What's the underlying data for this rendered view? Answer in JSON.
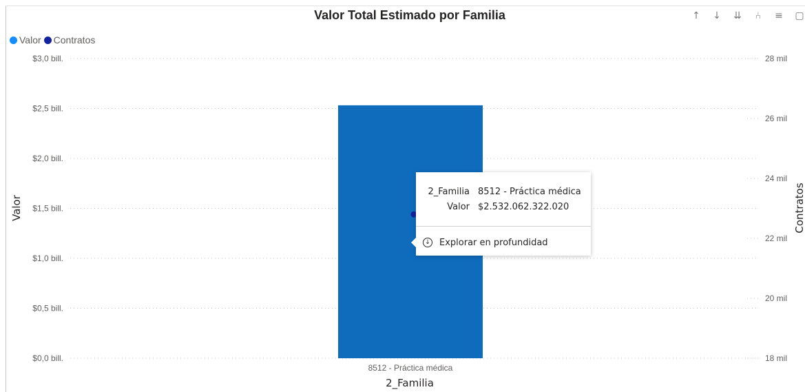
{
  "visual": {
    "title": "Valor Total Estimado por Familia",
    "toolbar": [
      {
        "name": "drill-up-icon",
        "glyph": "↑"
      },
      {
        "name": "drill-down-icon",
        "glyph": "↓"
      },
      {
        "name": "expand-next-level-icon",
        "glyph": "⇊"
      },
      {
        "name": "expand-hierarchy-icon",
        "glyph": "⑃"
      },
      {
        "name": "filter-icon",
        "glyph": "≡"
      },
      {
        "name": "focus-mode-icon",
        "glyph": "▢"
      }
    ]
  },
  "legend": [
    {
      "label": "Valor",
      "color": "#118DFF"
    },
    {
      "label": "Contratos",
      "color": "#12239E"
    }
  ],
  "chart_data": {
    "type": "bar",
    "title": "Valor Total Estimado por Familia",
    "xlabel": "2_Familia",
    "ylabel": "Valor",
    "y2label": "Contratos",
    "categories": [
      "8512 - Práctica médica"
    ],
    "series": [
      {
        "name": "Valor",
        "type": "bar",
        "axis": "left",
        "values": [
          2532062322020
        ],
        "color": "#0F6CBD"
      },
      {
        "name": "Contratos",
        "type": "line",
        "axis": "right",
        "values": [
          22800
        ],
        "color": "#12239E"
      }
    ],
    "ylim": [
      0,
      3000000000000
    ],
    "y2lim": [
      18000,
      28000
    ],
    "yticks": [
      {
        "value": 0,
        "label": "$0,0 bill."
      },
      {
        "value": 500000000000,
        "label": "$0,5 bill."
      },
      {
        "value": 1000000000000,
        "label": "$1,0 bill."
      },
      {
        "value": 1500000000000,
        "label": "$1,5 bill."
      },
      {
        "value": 2000000000000,
        "label": "$2,0 bill."
      },
      {
        "value": 2500000000000,
        "label": "$2,5 bill."
      },
      {
        "value": 3000000000000,
        "label": "$3,0 bill."
      }
    ],
    "y2ticks": [
      {
        "value": 18000,
        "label": "18 mil"
      },
      {
        "value": 20000,
        "label": "20 mil"
      },
      {
        "value": 22000,
        "label": "22 mil"
      },
      {
        "value": 24000,
        "label": "24 mil"
      },
      {
        "value": 26000,
        "label": "26 mil"
      },
      {
        "value": 28000,
        "label": "28 mil"
      }
    ],
    "grid": true,
    "legend_position": "top-left"
  },
  "tooltip": {
    "rows": [
      {
        "key": "2_Familia",
        "value": "8512 - Práctica médica"
      },
      {
        "key": "Valor",
        "value": "$2.532.062.322.020"
      }
    ],
    "action": "Explorar en profundidad"
  }
}
